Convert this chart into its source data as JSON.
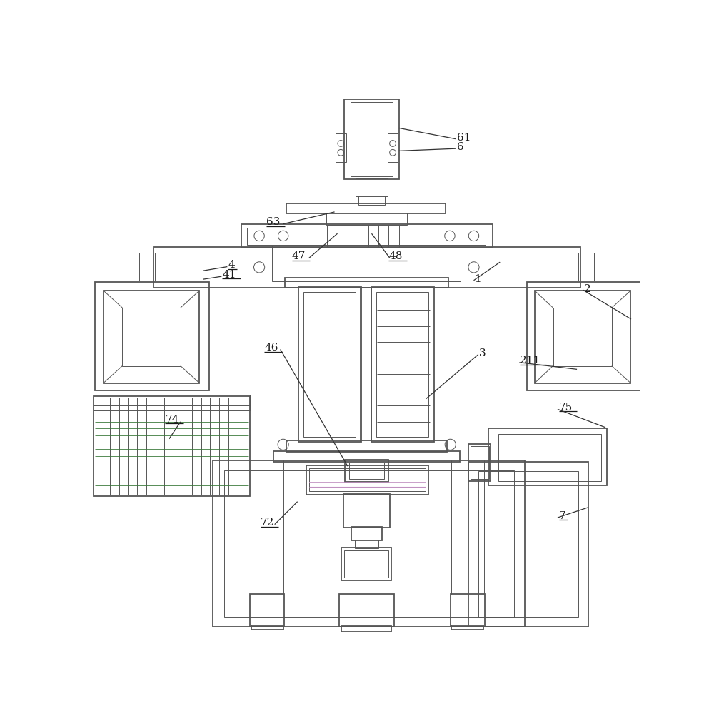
{
  "bg_color": "#ffffff",
  "lc": "#555555",
  "lw": 1.3,
  "tlw": 0.7,
  "fig_width": 10.0,
  "fig_height": 9.96
}
